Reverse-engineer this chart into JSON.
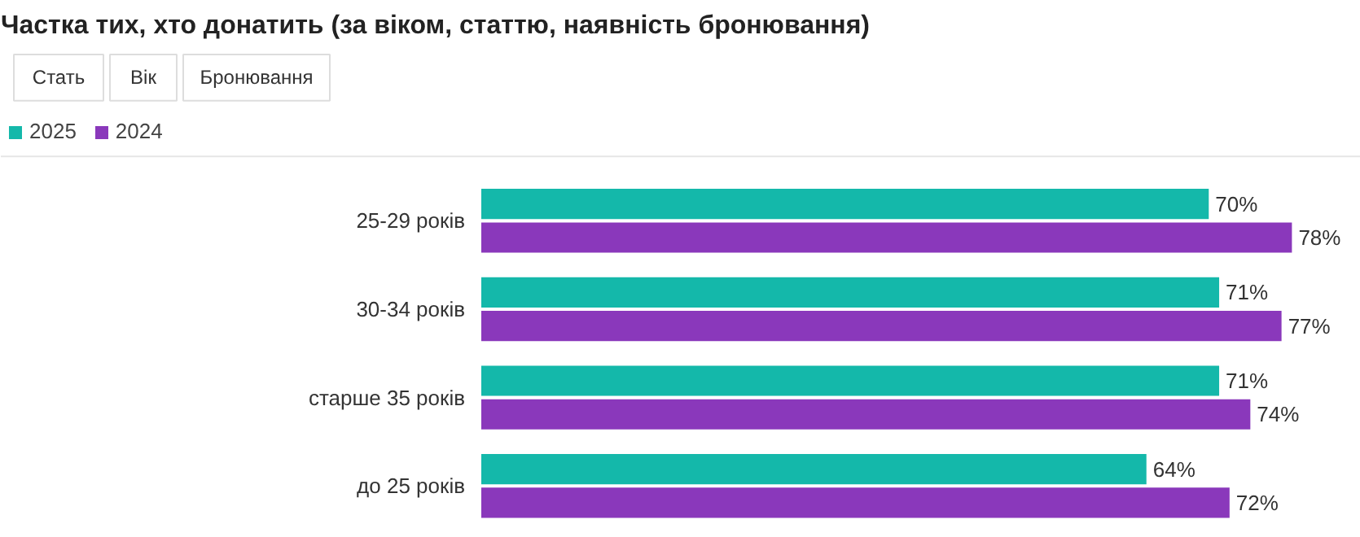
{
  "chart_data": {
    "type": "bar",
    "orientation": "horizontal",
    "legend": "top left",
    "title": "Частка тих, хто донатить (за віком, статтю, наявність бронювання)",
    "annotations": [
      "Стать",
      "Вік",
      "Бронювання"
    ],
    "categories": [
      "25-29 років",
      "30-34 років",
      "старше 35 років",
      "до 25 років"
    ],
    "series": [
      {
        "name": "2025",
        "color": "#14b8aa",
        "values": [
          70,
          71,
          71,
          64
        ],
        "value_labels": [
          "70%",
          "71%",
          "71%",
          "64%"
        ]
      },
      {
        "name": "2024",
        "color": "#8a38bb",
        "values": [
          78,
          77,
          74,
          72
        ],
        "value_labels": [
          "78%",
          "77%",
          "74%",
          "72%"
        ]
      }
    ]
  }
}
